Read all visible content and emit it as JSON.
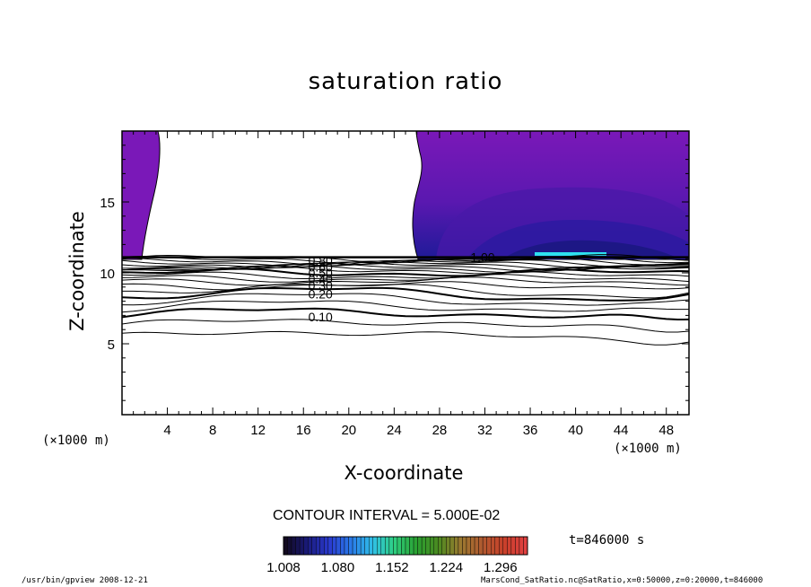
{
  "chart_data": {
    "type": "contour",
    "title": "saturation ratio",
    "xlabel": "X-coordinate",
    "ylabel": "Z-coordinate",
    "x_unit": "(×1000 m)",
    "xlim": [
      0,
      50
    ],
    "ylim": [
      0,
      20
    ],
    "x_ticks": [
      4,
      8,
      12,
      16,
      20,
      24,
      28,
      32,
      36,
      40,
      44,
      48
    ],
    "y_ticks": [
      5,
      10,
      15
    ],
    "contour_interval_label": "CONTOUR INTERVAL = 5.000E-02",
    "contour_labels": [
      {
        "text": "0.10",
        "x": 17.5,
        "z": 6.9
      },
      {
        "text": "0.20",
        "x": 17.5,
        "z": 8.5
      },
      {
        "text": "0.30",
        "x": 17.5,
        "z": 9.1
      },
      {
        "text": "0.40",
        "x": 17.5,
        "z": 9.6
      },
      {
        "text": "0.50",
        "x": 17.5,
        "z": 10.0
      },
      {
        "text": "0.60",
        "x": 17.5,
        "z": 10.4
      },
      {
        "text": "0.80",
        "x": 17.5,
        "z": 10.9
      },
      {
        "text": "1.00",
        "x": 31.8,
        "z": 11.1
      }
    ],
    "colorbar": {
      "min": 1.008,
      "max": 1.332,
      "tick_labels": [
        "1.008",
        "1.080",
        "1.152",
        "1.224",
        "1.296"
      ],
      "colors": [
        "#120a20",
        "#1a1a7a",
        "#2a3ad0",
        "#2a7ae8",
        "#30c0e8",
        "#2ed080",
        "#2aa030",
        "#4a8a20",
        "#9a7a30",
        "#b05a30",
        "#c8402a",
        "#e04040"
      ]
    },
    "shading": {
      "base_color": "#7a18b8",
      "dark_color": "#1e1a98",
      "highlight_color": "#2ee0f0"
    },
    "time_label": "t=846000 s"
  },
  "footer": {
    "left": "/usr/bin/gpview  2008-12-21",
    "right": "MarsCond_SatRatio.nc@SatRatio,x=0:50000,z=0:20000,t=846000"
  }
}
